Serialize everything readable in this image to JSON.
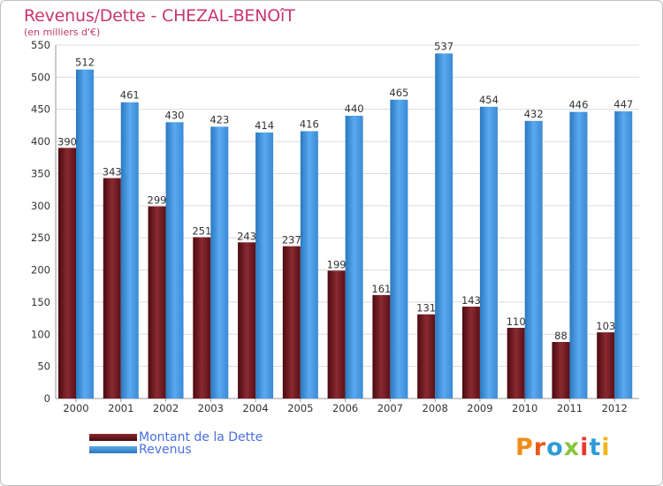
{
  "title": "Revenus/Dette - CHEZAL-BENOîT",
  "subtitle": "(en milliers d'€)",
  "legend": {
    "dette_label": "Montant de la Dette",
    "revenus_label": "Revenus"
  },
  "logo": {
    "text": "Proxiti",
    "colors": [
      "#f28c1a",
      "#e85a17",
      "#2f9ad8",
      "#8bc53f",
      "#e53b2c",
      "#2f9ad8",
      "#f2b51a"
    ]
  },
  "colors": {
    "dette": "#6a1218",
    "revenus": "#3d8fd6",
    "title": "#c8366e",
    "legend_text": "#4a6fe0"
  },
  "chart_data": {
    "type": "bar",
    "title": "Revenus/Dette - CHEZAL-BENOîT",
    "ylabel": "(en milliers d'€)",
    "xlabel": "",
    "categories": [
      "2000",
      "2001",
      "2002",
      "2003",
      "2004",
      "2005",
      "2006",
      "2007",
      "2008",
      "2009",
      "2010",
      "2011",
      "2012"
    ],
    "series": [
      {
        "name": "Montant de la Dette",
        "values": [
          390,
          343,
          299,
          251,
          243,
          237,
          199,
          161,
          131,
          143,
          110,
          88,
          103
        ]
      },
      {
        "name": "Revenus",
        "values": [
          512,
          461,
          430,
          423,
          414,
          416,
          440,
          465,
          537,
          454,
          432,
          446,
          447
        ]
      }
    ],
    "ylim": [
      0,
      550
    ],
    "yticks": [
      0,
      50,
      100,
      150,
      200,
      250,
      300,
      350,
      400,
      450,
      500,
      550
    ],
    "grid": true,
    "legend_position": "bottom-left"
  }
}
